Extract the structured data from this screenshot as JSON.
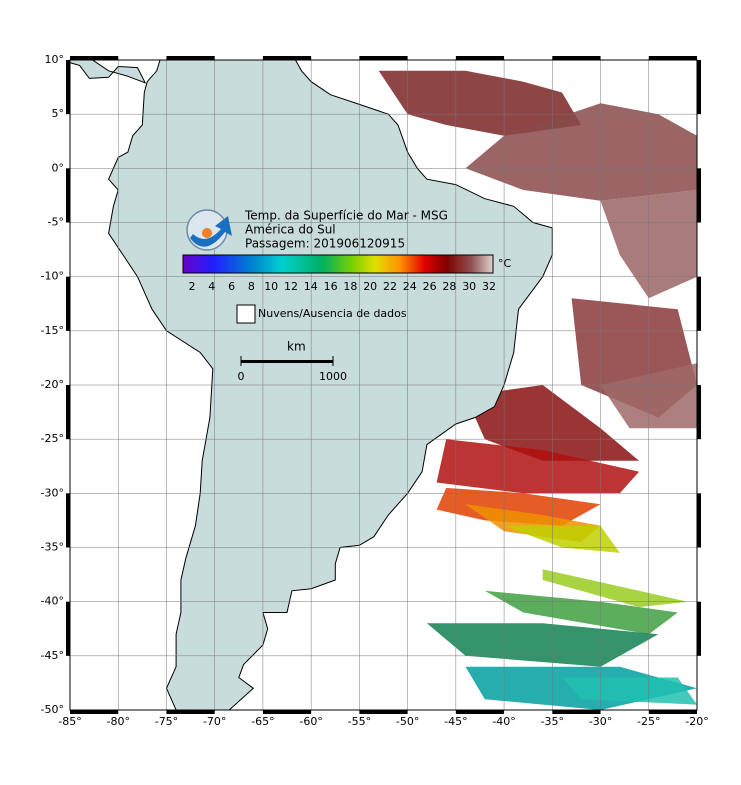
{
  "map": {
    "title": "Temp. da Superfície do Mar - MSG",
    "region": "América do Sul",
    "pass": "Passagem: 201906120915",
    "colorbar": {
      "ticks": [
        2,
        4,
        6,
        8,
        10,
        12,
        14,
        16,
        18,
        20,
        22,
        24,
        26,
        28,
        30,
        32
      ],
      "unit": "°C"
    },
    "legend": "Nuvens/Ausencia de dados",
    "scale": {
      "unit": "km",
      "ticks": [
        0,
        1000
      ]
    },
    "lon_ticks": [
      {
        "value": -85,
        "label": "-85°"
      },
      {
        "value": -80,
        "label": "-80°"
      },
      {
        "value": -75,
        "label": "-75°"
      },
      {
        "value": -70,
        "label": "-70°"
      },
      {
        "value": -65,
        "label": "-65°"
      },
      {
        "value": -60,
        "label": "-60°"
      },
      {
        "value": -55,
        "label": "-55°"
      },
      {
        "value": -50,
        "label": "-50°"
      },
      {
        "value": -45,
        "label": "-45°"
      },
      {
        "value": -40,
        "label": "-40°"
      },
      {
        "value": -35,
        "label": "-35°"
      },
      {
        "value": -30,
        "label": "-30°"
      },
      {
        "value": -25,
        "label": "-25°"
      },
      {
        "value": -20,
        "label": "-20°"
      }
    ],
    "lat_ticks": [
      {
        "value": 10,
        "label": "10°"
      },
      {
        "value": 5,
        "label": "5°"
      },
      {
        "value": 0,
        "label": "0°"
      },
      {
        "value": -5,
        "label": "-5°"
      },
      {
        "value": -10,
        "label": "-10°"
      },
      {
        "value": -15,
        "label": "-15°"
      },
      {
        "value": -20,
        "label": "-20°"
      },
      {
        "value": -25,
        "label": "-25°"
      },
      {
        "value": -30,
        "label": "-30°"
      },
      {
        "value": -35,
        "label": "-35°"
      },
      {
        "value": -40,
        "label": "-40°"
      },
      {
        "value": -45,
        "label": "-45°"
      },
      {
        "value": -50,
        "label": "-50°"
      }
    ]
  }
}
